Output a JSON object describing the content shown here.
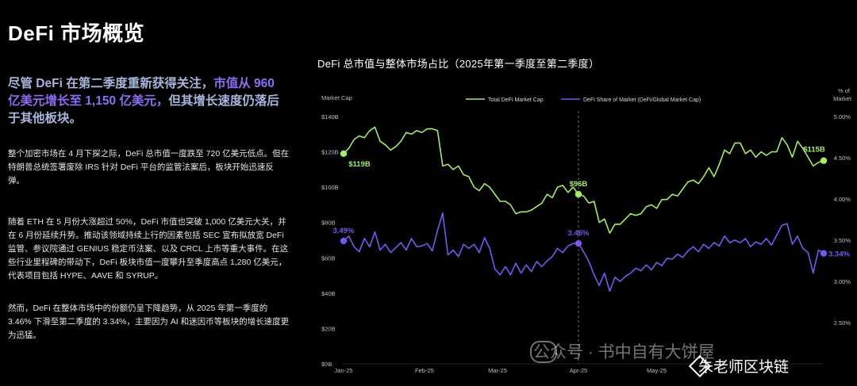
{
  "page": {
    "title": "DeFi 市场概览",
    "lead_parts": [
      {
        "t": "尽管 DeFi 在第二季度重新获得关注，",
        "hl": false
      },
      {
        "t": "市值从 960 亿美元增长至 1,150 亿美元，",
        "hl": true
      },
      {
        "t": "但其增长速度仍落后于其他板块。",
        "hl": false
      }
    ],
    "paragraphs": [
      "整个加密市场在 4 月下探之际，DeFi 总市值一度跌至 720 亿美元低点。但在特朗普总统签署废除 IRS 针对 DeFi 平台的监管法案后，板块开始迅速反弹。",
      "随着 ETH 在 5 月份大涨超过 50%，DeFi 市值也突破 1,000 亿美元大关，并在 6 月份延续升势。推动该领域持续上行的因素包括 SEC 宣布拟放宽 DeFi 监管、参议院通过 GENIUS 稳定币法案、以及 CRCL 上市等重大事件。在这些行业里程碑的带动下，DeFi 板块市值一度攀升至季度高点 1,280 亿美元，代表项目包括 HYPE、AAVE 和 SYRUP。",
      "然而，DeFi 在整体市场中的份额仍呈下降趋势，从 2025 年第一季度的 3.46% 下滑至第二季度的 3.34%，主要因为 AI 和迷因币等板块的增长速度更为迅猛。"
    ],
    "watermark_1": "公众号 · 书中自有大饼屋",
    "watermark_2": "朱老师区块链"
  },
  "chart_data": {
    "type": "line",
    "title": "DeFi 总市值与整体市场占比（2025年第一季度至第二季度）",
    "ylabel_left": "Market Cap",
    "ylabel_right": "% of Market",
    "y_left_ticks": [
      "$0B",
      "$20B",
      "$40B",
      "$60B",
      "$80B",
      "$100B",
      "$120B",
      "$140B"
    ],
    "ylim_left": [
      0,
      140
    ],
    "y_right_ticks": [
      "2.50%",
      "3.00%",
      "3.50%",
      "4.00%",
      "4.50%",
      "5.00%"
    ],
    "ylim_right": [
      2.0,
      5.0
    ],
    "x_ticks": [
      "Jan-25",
      "Feb-25",
      "Mar-25",
      "Apr-25",
      "May-25"
    ],
    "x_tick_days": [
      0,
      31,
      59,
      90,
      120
    ],
    "x_range_days": [
      0,
      184
    ],
    "vline_day": 90,
    "legend_position": "top",
    "colors": {
      "marketcap": "#a3ec6a",
      "share": "#7b55f2"
    },
    "series": [
      {
        "name": "Total DeFi Market Cap",
        "axis": "left",
        "points": [
          [
            0,
            119
          ],
          [
            2,
            122
          ],
          [
            4,
            127
          ],
          [
            6,
            129
          ],
          [
            8,
            128
          ],
          [
            10,
            132
          ],
          [
            12,
            134
          ],
          [
            14,
            126
          ],
          [
            16,
            124
          ],
          [
            18,
            121
          ],
          [
            20,
            123
          ],
          [
            22,
            126
          ],
          [
            24,
            131
          ],
          [
            26,
            130
          ],
          [
            28,
            132
          ],
          [
            30,
            131
          ],
          [
            32,
            133
          ],
          [
            34,
            133
          ],
          [
            36,
            132
          ],
          [
            38,
            112
          ],
          [
            40,
            113
          ],
          [
            42,
            110
          ],
          [
            44,
            112
          ],
          [
            46,
            107
          ],
          [
            48,
            106
          ],
          [
            50,
            100
          ],
          [
            52,
            98
          ],
          [
            54,
            102
          ],
          [
            56,
            100
          ],
          [
            58,
            96
          ],
          [
            60,
            92
          ],
          [
            62,
            92
          ],
          [
            64,
            90
          ],
          [
            66,
            85
          ],
          [
            68,
            86
          ],
          [
            70,
            86
          ],
          [
            72,
            87
          ],
          [
            74,
            89
          ],
          [
            76,
            91
          ],
          [
            78,
            96
          ],
          [
            80,
            94
          ],
          [
            82,
            100
          ],
          [
            84,
            101
          ],
          [
            86,
            97
          ],
          [
            88,
            100
          ],
          [
            90,
            96
          ],
          [
            92,
            95
          ],
          [
            94,
            91
          ],
          [
            96,
            92
          ],
          [
            98,
            80
          ],
          [
            100,
            82
          ],
          [
            102,
            74
          ],
          [
            104,
            79
          ],
          [
            106,
            79
          ],
          [
            108,
            82
          ],
          [
            110,
            85
          ],
          [
            112,
            84
          ],
          [
            114,
            85
          ],
          [
            116,
            89
          ],
          [
            118,
            90
          ],
          [
            120,
            88
          ],
          [
            122,
            93
          ],
          [
            124,
            93
          ],
          [
            126,
            96
          ],
          [
            128,
            95
          ],
          [
            130,
            99
          ],
          [
            132,
            103
          ],
          [
            134,
            104
          ],
          [
            136,
            102
          ],
          [
            138,
            106
          ],
          [
            140,
            111
          ],
          [
            142,
            106
          ],
          [
            144,
            113
          ],
          [
            146,
            121
          ],
          [
            148,
            119
          ],
          [
            150,
            125
          ],
          [
            152,
            125
          ],
          [
            154,
            119
          ],
          [
            156,
            121
          ],
          [
            158,
            117
          ],
          [
            160,
            120
          ],
          [
            162,
            118
          ],
          [
            164,
            120
          ],
          [
            166,
            120
          ],
          [
            168,
            128
          ],
          [
            170,
            124
          ],
          [
            172,
            117
          ],
          [
            174,
            126
          ],
          [
            176,
            122
          ],
          [
            178,
            117
          ],
          [
            180,
            112
          ],
          [
            182,
            114
          ],
          [
            184,
            115
          ]
        ]
      },
      {
        "name": "DeFi Share of Market (DeFi/Global Market Cap)",
        "axis": "right",
        "points": [
          [
            0,
            3.49
          ],
          [
            2,
            3.55
          ],
          [
            4,
            3.42
          ],
          [
            6,
            3.36
          ],
          [
            8,
            3.52
          ],
          [
            10,
            3.42
          ],
          [
            12,
            3.6
          ],
          [
            14,
            3.38
          ],
          [
            16,
            3.45
          ],
          [
            18,
            3.35
          ],
          [
            20,
            3.41
          ],
          [
            22,
            3.47
          ],
          [
            24,
            3.38
          ],
          [
            26,
            3.52
          ],
          [
            28,
            3.42
          ],
          [
            30,
            3.43
          ],
          [
            32,
            3.46
          ],
          [
            34,
            3.37
          ],
          [
            36,
            3.62
          ],
          [
            38,
            3.83
          ],
          [
            40,
            3.32
          ],
          [
            42,
            3.38
          ],
          [
            44,
            3.3
          ],
          [
            46,
            3.45
          ],
          [
            48,
            3.4
          ],
          [
            50,
            3.45
          ],
          [
            52,
            3.35
          ],
          [
            54,
            3.53
          ],
          [
            56,
            3.4
          ],
          [
            58,
            3.15
          ],
          [
            60,
            3.08
          ],
          [
            62,
            3.18
          ],
          [
            64,
            3.08
          ],
          [
            66,
            3.22
          ],
          [
            68,
            3.1
          ],
          [
            70,
            3.2
          ],
          [
            72,
            3.12
          ],
          [
            74,
            3.24
          ],
          [
            76,
            3.18
          ],
          [
            78,
            3.25
          ],
          [
            80,
            3.3
          ],
          [
            82,
            3.4
          ],
          [
            84,
            3.35
          ],
          [
            86,
            3.43
          ],
          [
            88,
            3.46
          ],
          [
            90,
            3.46
          ],
          [
            92,
            3.36
          ],
          [
            94,
            3.24
          ],
          [
            96,
            3.08
          ],
          [
            98,
            2.95
          ],
          [
            100,
            3.1
          ],
          [
            102,
            2.88
          ],
          [
            104,
            3.05
          ],
          [
            106,
            3.0
          ],
          [
            108,
            3.06
          ],
          [
            110,
            3.1
          ],
          [
            112,
            3.16
          ],
          [
            114,
            3.13
          ],
          [
            116,
            3.2
          ],
          [
            118,
            3.14
          ],
          [
            120,
            3.23
          ],
          [
            122,
            3.19
          ],
          [
            124,
            3.28
          ],
          [
            126,
            3.27
          ],
          [
            128,
            3.33
          ],
          [
            130,
            3.29
          ],
          [
            132,
            3.37
          ],
          [
            134,
            3.42
          ],
          [
            136,
            3.36
          ],
          [
            138,
            3.45
          ],
          [
            140,
            3.4
          ],
          [
            142,
            3.47
          ],
          [
            144,
            3.43
          ],
          [
            146,
            3.55
          ],
          [
            148,
            3.47
          ],
          [
            150,
            3.5
          ],
          [
            152,
            3.47
          ],
          [
            154,
            3.52
          ],
          [
            156,
            3.42
          ],
          [
            158,
            3.48
          ],
          [
            160,
            3.45
          ],
          [
            162,
            3.52
          ],
          [
            164,
            3.44
          ],
          [
            166,
            3.56
          ],
          [
            168,
            3.68
          ],
          [
            170,
            3.7
          ],
          [
            172,
            3.45
          ],
          [
            174,
            3.55
          ],
          [
            176,
            3.4
          ],
          [
            178,
            3.35
          ],
          [
            180,
            3.1
          ],
          [
            182,
            3.38
          ],
          [
            184,
            3.34
          ]
        ]
      }
    ],
    "annotations": [
      {
        "series": 0,
        "day": 0,
        "value": 119,
        "label": "$119B"
      },
      {
        "series": 0,
        "day": 90,
        "value": 96,
        "label": "$96B"
      },
      {
        "series": 0,
        "day": 184,
        "value": 115,
        "label": "$115B"
      },
      {
        "series": 1,
        "day": 0,
        "value": 3.49,
        "label": "3.49%"
      },
      {
        "series": 1,
        "day": 90,
        "value": 3.46,
        "label": "3.46%"
      },
      {
        "series": 1,
        "day": 184,
        "value": 3.34,
        "label": "3.34%"
      }
    ]
  }
}
